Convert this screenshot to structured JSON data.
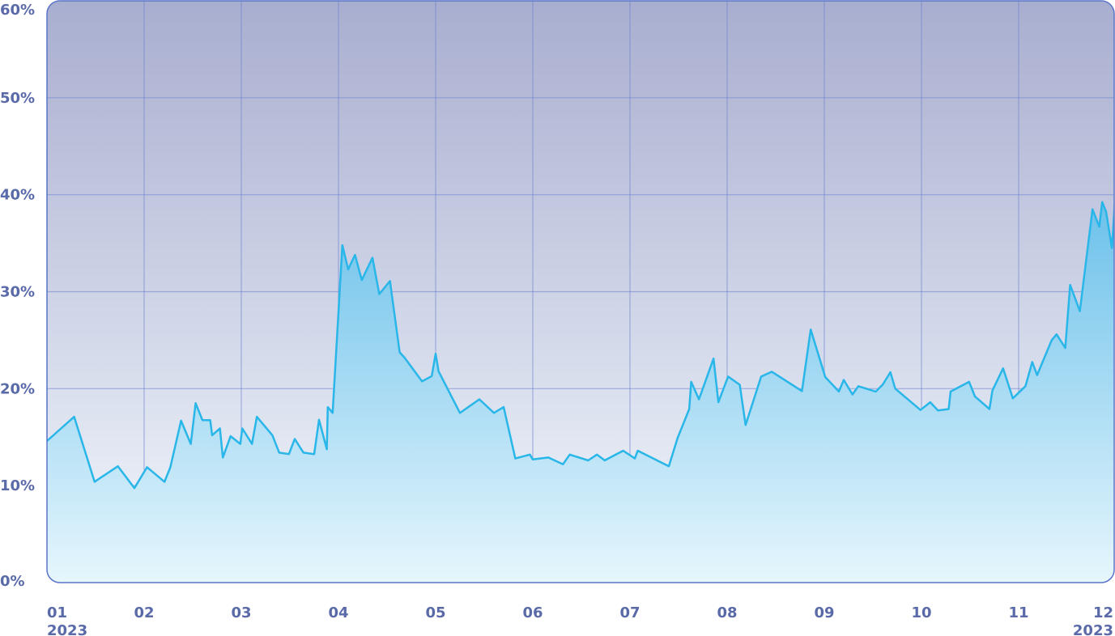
{
  "chart_data": {
    "type": "area",
    "x": [
      1.0,
      1.28,
      1.49,
      1.73,
      1.9,
      2.03,
      2.21,
      2.27,
      2.38,
      2.48,
      2.53,
      2.6,
      2.68,
      2.7,
      2.78,
      2.81,
      2.89,
      2.99,
      3.01,
      3.11,
      3.16,
      3.32,
      3.39,
      3.49,
      3.55,
      3.64,
      3.75,
      3.8,
      3.88,
      3.89,
      3.94,
      4.04,
      4.1,
      4.17,
      4.24,
      4.35,
      4.42,
      4.53,
      4.63,
      4.68,
      4.86,
      4.96,
      5.0,
      5.03,
      5.25,
      5.45,
      5.6,
      5.7,
      5.82,
      5.97,
      6.0,
      6.16,
      6.31,
      6.38,
      6.57,
      6.66,
      6.74,
      6.93,
      7.05,
      7.08,
      7.4,
      7.49,
      7.61,
      7.63,
      7.71,
      7.86,
      7.91,
      8.01,
      8.13,
      8.19,
      8.35,
      8.46,
      8.77,
      8.86,
      9.01,
      9.15,
      9.2,
      9.29,
      9.35,
      9.53,
      9.6,
      9.68,
      9.73,
      9.99,
      10.09,
      10.17,
      10.28,
      10.3,
      10.49,
      10.55,
      10.7,
      10.73,
      10.84,
      10.94,
      11.07,
      11.14,
      11.19,
      11.34,
      11.39,
      11.48,
      11.53,
      11.63,
      11.76,
      11.83,
      11.86,
      11.9,
      11.96,
      11.99
    ],
    "series": [
      {
        "color": "#29b6e8",
        "values": [
          14.6,
          17.1,
          10.4,
          12.0,
          9.75,
          11.9,
          10.4,
          11.9,
          16.7,
          14.3,
          18.5,
          16.75,
          16.75,
          15.2,
          15.9,
          12.9,
          15.1,
          14.3,
          15.9,
          14.3,
          17.1,
          15.2,
          13.4,
          13.25,
          14.8,
          13.4,
          13.25,
          16.8,
          13.75,
          18.1,
          17.5,
          34.8,
          32.3,
          33.8,
          31.2,
          33.5,
          29.75,
          31.1,
          23.75,
          23.2,
          20.75,
          21.3,
          23.6,
          21.8,
          17.5,
          18.9,
          17.5,
          18.1,
          12.8,
          13.2,
          12.7,
          12.9,
          12.2,
          13.2,
          12.6,
          13.2,
          12.6,
          13.6,
          12.8,
          13.6,
          12.0,
          14.9,
          17.9,
          20.7,
          18.9,
          23.1,
          18.6,
          21.25,
          20.4,
          16.25,
          21.25,
          21.75,
          19.75,
          26.1,
          21.2,
          19.7,
          20.9,
          19.4,
          20.25,
          19.7,
          20.4,
          21.7,
          20.0,
          17.8,
          18.6,
          17.75,
          17.9,
          19.7,
          20.7,
          19.2,
          17.9,
          19.8,
          22.1,
          19.0,
          20.25,
          22.75,
          21.4,
          25.0,
          25.6,
          24.2,
          30.7,
          28.0,
          38.5,
          36.7,
          39.25,
          38.25,
          34.5,
          39.25
        ]
      }
    ],
    "xlim": [
      1,
      12
    ],
    "xticks": [
      {
        "value": 1,
        "label": "01"
      },
      {
        "value": 2,
        "label": "02"
      },
      {
        "value": 3,
        "label": "03"
      },
      {
        "value": 4,
        "label": "04"
      },
      {
        "value": 5,
        "label": "05"
      },
      {
        "value": 6,
        "label": "06"
      },
      {
        "value": 7,
        "label": "07"
      },
      {
        "value": 8,
        "label": "08"
      },
      {
        "value": 9,
        "label": "09"
      },
      {
        "value": 10,
        "label": "10"
      },
      {
        "value": 11,
        "label": "11"
      },
      {
        "value": 12,
        "label": "12"
      }
    ],
    "year_label": "2023",
    "ylim": [
      0,
      60
    ],
    "yticks": [
      {
        "value": 0,
        "label": "0%"
      },
      {
        "value": 10,
        "label": "10%"
      },
      {
        "value": 20,
        "label": "20%"
      },
      {
        "value": 30,
        "label": "30%"
      },
      {
        "value": 40,
        "label": "40%"
      },
      {
        "value": 50,
        "label": "50%"
      },
      {
        "value": 60,
        "label": "60%"
      }
    ],
    "grid": true
  }
}
